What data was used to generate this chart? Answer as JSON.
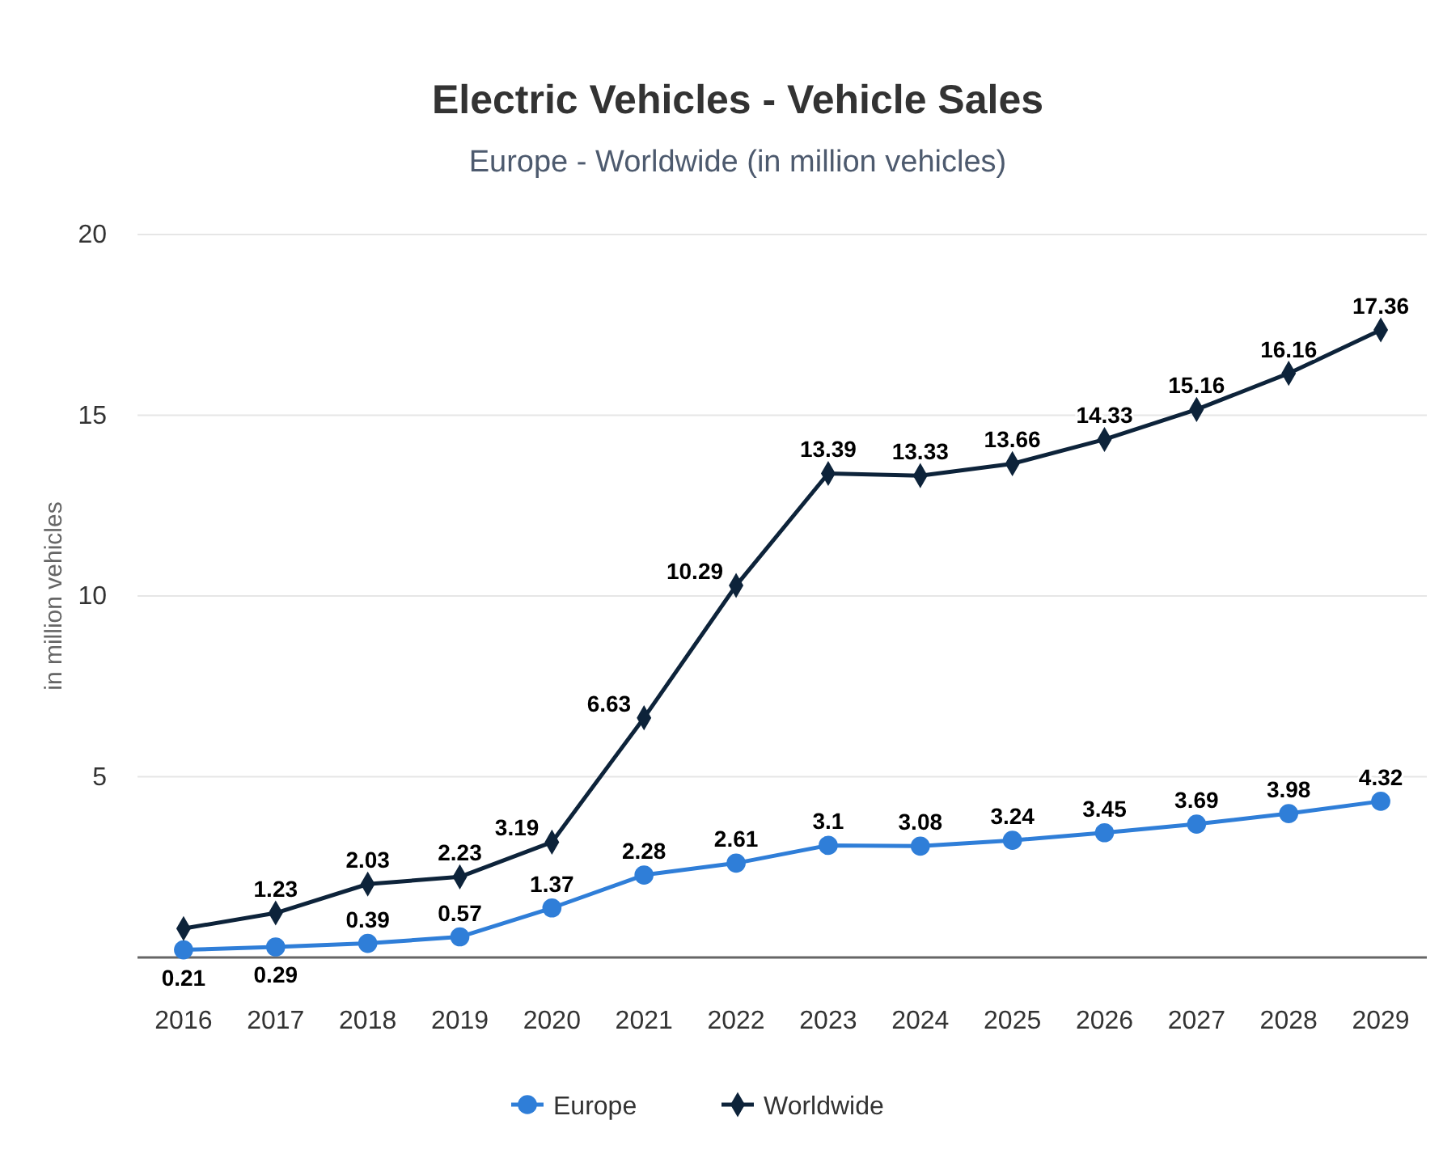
{
  "chart_data": {
    "type": "line",
    "title": "Electric Vehicles - Vehicle Sales",
    "subtitle": "Europe - Worldwide (in million vehicles)",
    "ylabel": "in million vehicles",
    "categories": [
      "2016",
      "2017",
      "2018",
      "2019",
      "2020",
      "2021",
      "2022",
      "2023",
      "2024",
      "2025",
      "2026",
      "2027",
      "2028",
      "2029"
    ],
    "series": [
      {
        "name": "Europe",
        "color": "#2f7ed8",
        "marker": "circle",
        "values": [
          0.21,
          0.29,
          0.39,
          0.57,
          1.37,
          2.28,
          2.61,
          3.1,
          3.08,
          3.24,
          3.45,
          3.69,
          3.98,
          4.32
        ],
        "value_labels": [
          "0.21",
          "0.29",
          "0.39",
          "0.57",
          "1.37",
          "2.28",
          "2.61",
          "3.1",
          "3.08",
          "3.24",
          "3.45",
          "3.69",
          "3.98",
          "4.32"
        ]
      },
      {
        "name": "Worldwide",
        "color": "#0d233a",
        "marker": "diamond",
        "values": [
          0.8,
          1.23,
          2.03,
          2.23,
          3.19,
          6.63,
          10.29,
          13.39,
          13.33,
          13.66,
          14.33,
          15.16,
          16.16,
          17.36
        ],
        "value_labels": [
          null,
          "1.23",
          "2.03",
          "2.23",
          "3.19",
          "6.63",
          "10.29",
          "13.39",
          "13.33",
          "13.66",
          "14.33",
          "15.16",
          "16.16",
          "17.36"
        ]
      }
    ],
    "ylim": [
      0,
      20
    ],
    "yticks": [
      {
        "value": 0,
        "label": null
      },
      5,
      10,
      15,
      20
    ],
    "grid": "y",
    "legend": "bottom"
  }
}
